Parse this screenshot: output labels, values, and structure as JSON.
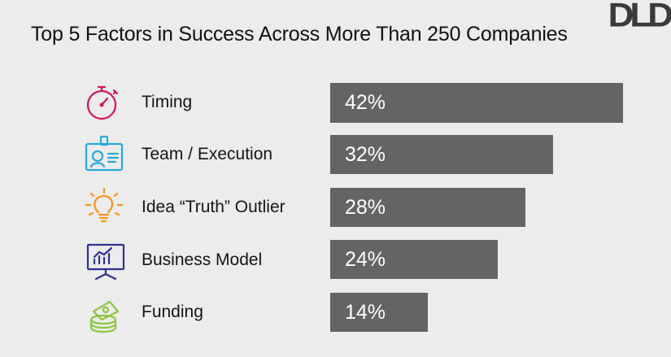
{
  "title": "Top 5 Factors in Success Across More Than 250 Companies",
  "logo_text": "DLD",
  "colors": {
    "background": "#ececec",
    "bar": "#646464",
    "bar_text": "#ffffff",
    "icon_timing": "#d4145a",
    "icon_team": "#29a8e0",
    "icon_idea": "#f7931e",
    "icon_business": "#2e3192",
    "icon_funding": "#8cc63f"
  },
  "chart_data": {
    "type": "bar",
    "orientation": "horizontal",
    "title": "Top 5 Factors in Success Across More Than 250 Companies",
    "categories": [
      "Timing",
      "Team / Execution",
      "Idea “Truth” Outlier",
      "Business Model",
      "Funding"
    ],
    "values": [
      42,
      32,
      28,
      24,
      14
    ],
    "value_labels": [
      "42%",
      "32%",
      "28%",
      "24%",
      "14%"
    ],
    "icons": [
      "stopwatch-icon",
      "id-badge-icon",
      "lightbulb-icon",
      "presentation-chart-icon",
      "money-stack-icon"
    ],
    "xlim": [
      0,
      42
    ],
    "grid": false,
    "legend": "none"
  }
}
